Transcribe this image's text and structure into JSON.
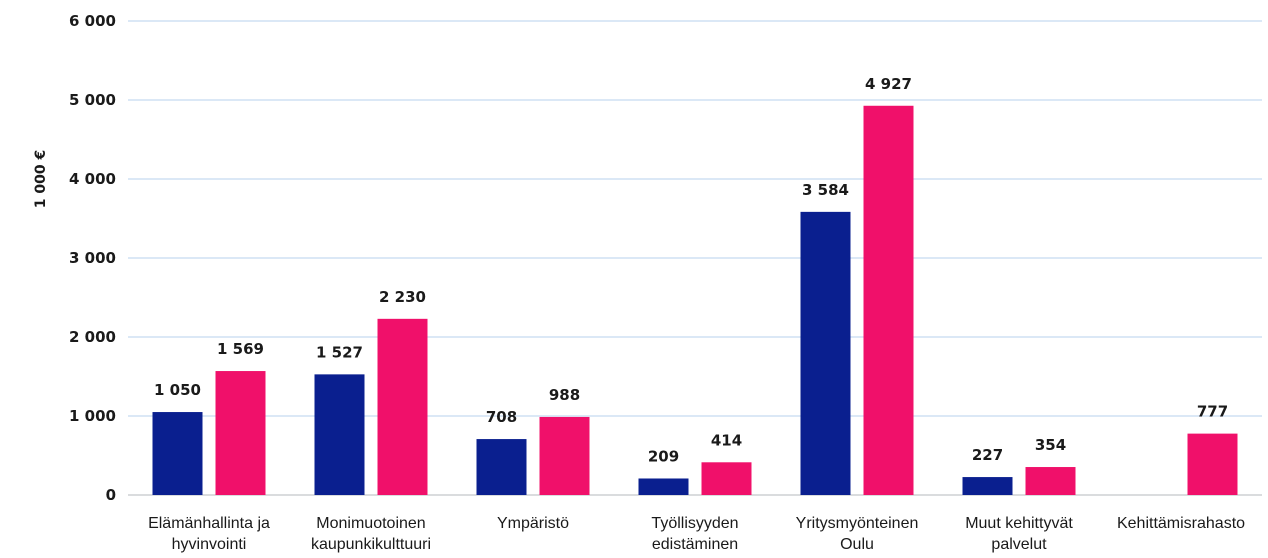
{
  "chart_data": {
    "type": "bar",
    "ylabel": "1 000 €",
    "ylim": [
      0,
      6000
    ],
    "yticks": [
      0,
      1000,
      2000,
      3000,
      4000,
      5000,
      6000
    ],
    "ytick_labels": [
      "0",
      "1 000",
      "2 000",
      "3 000",
      "4 000",
      "5 000",
      "6 000"
    ],
    "grid": true,
    "categories": [
      [
        "Elämänhallinta ja",
        "hyvinvointi"
      ],
      [
        "Monimuotoinen",
        "kaupunkikulttuuri"
      ],
      [
        "Ympäristö"
      ],
      [
        "Työllisyyden",
        "edistäminen"
      ],
      [
        "Yritysmyönteinen",
        "Oulu"
      ],
      [
        "Muut kehittyvät",
        "palvelut"
      ],
      [
        "Kehittämisrahasto"
      ]
    ],
    "series": [
      {
        "color": "#0a1f8f",
        "values": [
          1050,
          1527,
          708,
          209,
          3584,
          227,
          null
        ],
        "labels": [
          "1 050",
          "1 527",
          "708",
          "209",
          "3 584",
          "227",
          null
        ]
      },
      {
        "color": "#f0106a",
        "values": [
          1569,
          2230,
          988,
          414,
          4927,
          354,
          777
        ],
        "labels": [
          "1 569",
          "2 230",
          "988",
          "414",
          "4 927",
          "354",
          "777"
        ]
      }
    ],
    "gridline_color": "#cfe0f3"
  }
}
